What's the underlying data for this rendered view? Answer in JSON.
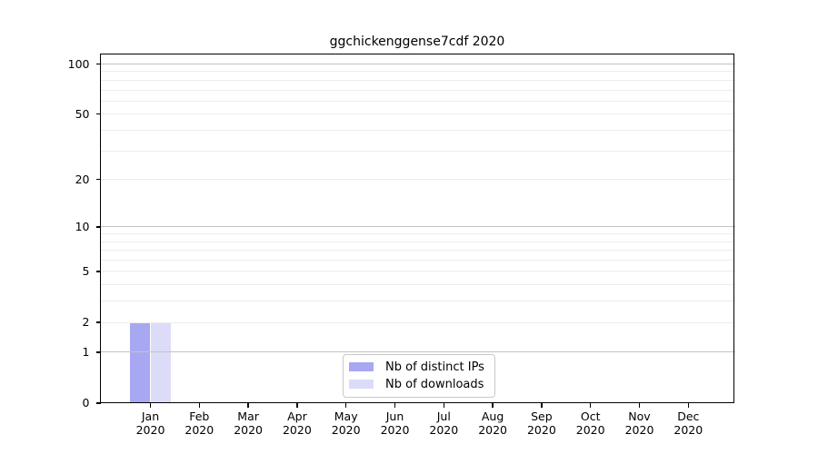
{
  "chart_data": {
    "type": "bar",
    "title": "ggchickenggense7cdf 2020",
    "categories": [
      "Jan 2020",
      "Feb 2020",
      "Mar 2020",
      "Apr 2020",
      "May 2020",
      "Jun 2020",
      "Jul 2020",
      "Aug 2020",
      "Sep 2020",
      "Oct 2020",
      "Nov 2020",
      "Dec 2020"
    ],
    "series": [
      {
        "name": "Nb of distinct IPs",
        "color": "#a8a8f2",
        "values": [
          2,
          0,
          0,
          0,
          0,
          0,
          0,
          0,
          0,
          0,
          0,
          0
        ]
      },
      {
        "name": "Nb of downloads",
        "color": "#dcdcf8",
        "values": [
          2,
          0,
          0,
          0,
          0,
          0,
          0,
          0,
          0,
          0,
          0,
          0
        ]
      }
    ],
    "xlabel": "",
    "ylabel": "",
    "y_axis": {
      "scale": "log1p",
      "ticks": [
        0,
        1,
        2,
        5,
        10,
        20,
        50,
        100
      ],
      "gridlines": [
        1,
        2,
        3,
        4,
        5,
        6,
        7,
        8,
        9,
        10,
        20,
        30,
        40,
        50,
        60,
        70,
        80,
        90,
        100
      ],
      "major_gridlines": [
        1,
        10,
        100
      ],
      "ylim": [
        0,
        114
      ]
    },
    "legend": {
      "position": "lower center",
      "entries": [
        "Nb of distinct IPs",
        "Nb of downloads"
      ]
    },
    "grid": true
  },
  "colors": {
    "background": "#ffffff",
    "axis": "#000000",
    "text": "#000000",
    "grid_minor": "#ececec",
    "grid_major": "#c3c3c3",
    "legend_border": "#c8c8c8",
    "bar_distinct_ips": "#a8a8f2",
    "bar_downloads": "#dcdcf8"
  }
}
